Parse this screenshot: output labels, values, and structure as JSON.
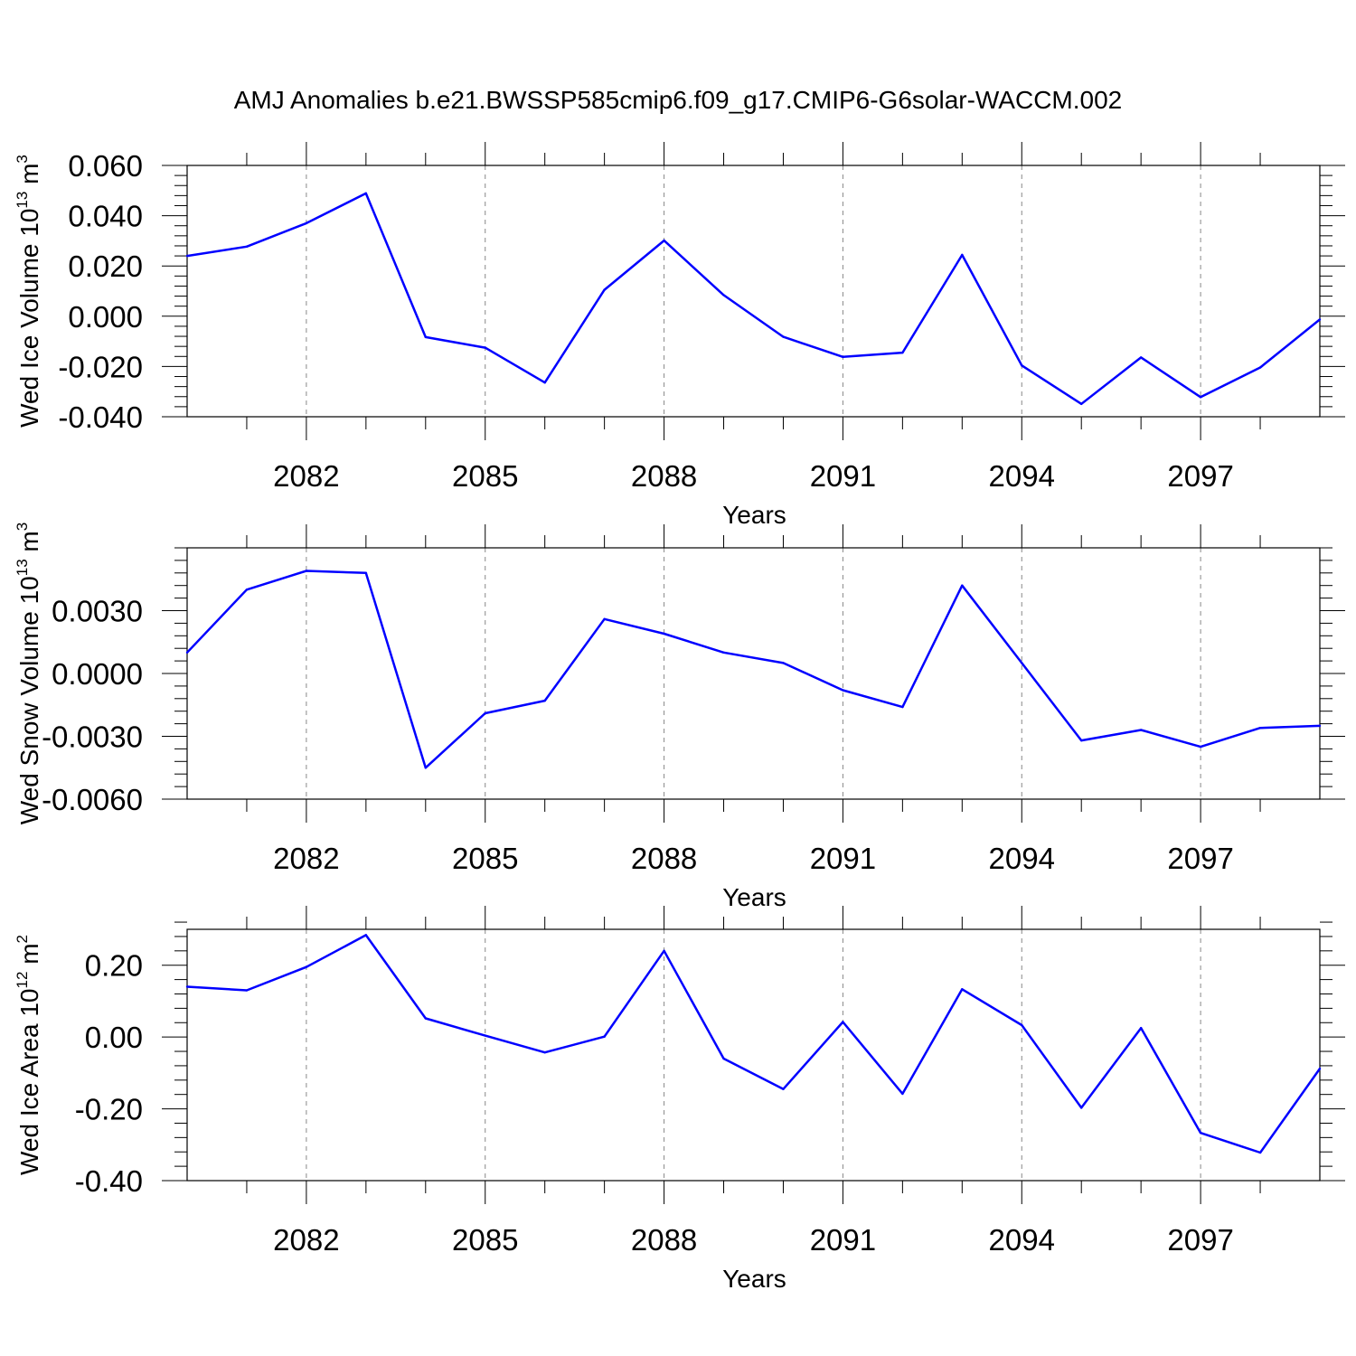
{
  "title": "AMJ Anomalies b.e21.BWSSP585cmip6.f09_g17.CMIP6-G6solar-WACCM.002",
  "colors": {
    "series": "#0000ff",
    "axis": "#000000",
    "grid": "#888888"
  },
  "chart_data": [
    {
      "type": "line",
      "ylabel": {
        "text": "Wed Ice Volume 10",
        "sup1": "13",
        "unit": "m",
        "sup2": "3"
      },
      "xlabel": "Years",
      "xlim": [
        2080,
        2099
      ],
      "ylim": [
        -0.04,
        0.06
      ],
      "y_ticks": [
        0.06,
        0.04,
        0.02,
        0.0,
        -0.02,
        -0.04
      ],
      "y_tick_labels": [
        "0.060",
        "0.040",
        "0.020",
        "0.000",
        "-0.020",
        "-0.040"
      ],
      "x_ticks": [
        2082,
        2085,
        2088,
        2091,
        2094,
        2097
      ],
      "x_tick_labels": [
        "2082",
        "2085",
        "2088",
        "2091",
        "2094",
        "2097"
      ],
      "grid": "vertical dashed at labeled years",
      "x": [
        2080,
        2081,
        2082,
        2083,
        2084,
        2085,
        2086,
        2087,
        2088,
        2089,
        2090,
        2091,
        2092,
        2093,
        2094,
        2095,
        2096,
        2097,
        2098,
        2099
      ],
      "values": [
        0.024,
        0.0277,
        0.037,
        0.0489,
        -0.0083,
        -0.0125,
        -0.0264,
        0.0105,
        0.0301,
        0.0084,
        -0.0082,
        -0.0162,
        -0.0145,
        0.0244,
        -0.0196,
        -0.0349,
        -0.0164,
        -0.0322,
        -0.0204,
        -0.0013
      ]
    },
    {
      "type": "line",
      "ylabel": {
        "text": "Wed Snow Volume 10",
        "sup1": "13",
        "unit": "m",
        "sup2": "3"
      },
      "xlabel": "Years",
      "xlim": [
        2080,
        2099
      ],
      "ylim": [
        -0.006,
        0.006
      ],
      "y_ticks": [
        0.003,
        0.0,
        -0.003,
        -0.006
      ],
      "y_tick_labels": [
        "0.0030",
        "0.0000",
        "-0.0030",
        "-0.0060"
      ],
      "x_ticks": [
        2082,
        2085,
        2088,
        2091,
        2094,
        2097
      ],
      "x_tick_labels": [
        "2082",
        "2085",
        "2088",
        "2091",
        "2094",
        "2097"
      ],
      "grid": "vertical dashed at labeled years",
      "x": [
        2080,
        2081,
        2082,
        2083,
        2084,
        2085,
        2086,
        2087,
        2088,
        2089,
        2090,
        2091,
        2092,
        2093,
        2094,
        2095,
        2096,
        2097,
        2098,
        2099
      ],
      "values": [
        0.001,
        0.004,
        0.0049,
        0.0048,
        -0.0045,
        -0.0019,
        -0.0013,
        0.0026,
        0.0019,
        0.001,
        0.0005,
        -0.0008,
        -0.0016,
        0.0042,
        0.0005,
        -0.0032,
        -0.0027,
        -0.0035,
        -0.0026,
        -0.0025
      ]
    },
    {
      "type": "line",
      "ylabel": {
        "text": "Wed Ice Area 10",
        "sup1": "12",
        "unit": "m",
        "sup2": "2"
      },
      "xlabel": "Years",
      "xlim": [
        2080,
        2099
      ],
      "ylim": [
        -0.4,
        0.3
      ],
      "y_ticks": [
        0.2,
        0.0,
        -0.2,
        -0.4
      ],
      "y_tick_labels": [
        "0.20",
        "0.00",
        "-0.20",
        "-0.40"
      ],
      "x_ticks": [
        2082,
        2085,
        2088,
        2091,
        2094,
        2097
      ],
      "x_tick_labels": [
        "2082",
        "2085",
        "2088",
        "2091",
        "2094",
        "2097"
      ],
      "grid": "vertical dashed at labeled years",
      "x": [
        2080,
        2081,
        2082,
        2083,
        2084,
        2085,
        2086,
        2087,
        2088,
        2089,
        2090,
        2091,
        2092,
        2093,
        2094,
        2095,
        2096,
        2097,
        2098,
        2099
      ],
      "values": [
        0.14,
        0.13,
        0.195,
        0.284,
        0.052,
        0.004,
        -0.043,
        0.001,
        0.24,
        -0.06,
        -0.145,
        0.042,
        -0.158,
        0.133,
        0.033,
        -0.197,
        0.025,
        -0.267,
        -0.322,
        -0.088
      ]
    }
  ]
}
